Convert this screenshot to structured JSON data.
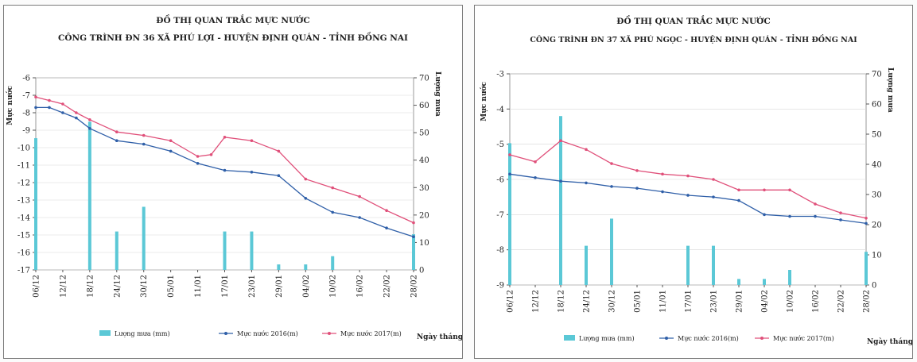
{
  "legend_labels": {
    "rain": "Lượng mưa (mm)",
    "level2016": "Mực nước 2016(m)",
    "level2017": "Mực nước 2017(m)"
  },
  "colors": {
    "rain": "#5bc8d6",
    "level2016": "#2f5fa8",
    "level2017": "#e0507a",
    "border": "#7a7a7a",
    "grid": "#d8d8d8"
  },
  "chart_data": [
    {
      "type": "bar",
      "title": "ĐỒ THỊ QUAN TRẮC MỰC NƯỚC",
      "subtitle": "CÔNG TRÌNH ĐN 36 XÃ PHÚ LỢI - HUYỆN ĐỊNH QUÁN - TỈNH ĐỒNG NAI",
      "ylabel_left": "Mực nước",
      "ylabel_right": "Lượng mưa",
      "xlabel": "Ngày tháng",
      "ylim_left": [
        -17,
        -6
      ],
      "ylim_right": [
        0,
        70
      ],
      "left_ticks": [
        -6,
        -7,
        -8,
        -9,
        -10,
        -11,
        -12,
        -13,
        -14,
        -15,
        -16,
        -17
      ],
      "right_ticks": [
        70,
        60,
        50,
        40,
        30,
        20,
        10,
        0
      ],
      "categories": [
        "06/12",
        "12/12",
        "18/12",
        "24/12",
        "30/12",
        "05/01",
        "11/01",
        "17/01",
        "23/01",
        "29/01",
        "04/02",
        "10/02",
        "16/02",
        "22/02",
        "28/02"
      ],
      "rain": {
        "x": [
          0,
          2,
          3,
          4,
          7,
          8,
          9,
          10,
          11,
          14
        ],
        "values": [
          48,
          54,
          14,
          23,
          14,
          14,
          2,
          2,
          5,
          13
        ]
      },
      "level2016": {
        "x": [
          0,
          0.5,
          1,
          1.5,
          2,
          3,
          4,
          5,
          6,
          7,
          8,
          9,
          10,
          11,
          12,
          13,
          14
        ],
        "values": [
          -7.7,
          -7.7,
          -8.0,
          -8.3,
          -8.9,
          -9.6,
          -9.8,
          -10.2,
          -10.9,
          -11.3,
          -11.4,
          -11.6,
          -12.9,
          -13.7,
          -14.0,
          -14.6,
          -15.1
        ]
      },
      "level2017": {
        "x": [
          0,
          0.5,
          1,
          1.5,
          2,
          3,
          4,
          5,
          6,
          6.5,
          7,
          8,
          9,
          10,
          11,
          12,
          13,
          14
        ],
        "values": [
          -7.1,
          -7.3,
          -7.5,
          -8.0,
          -8.4,
          -9.1,
          -9.3,
          -9.6,
          -10.5,
          -10.4,
          -9.4,
          -9.6,
          -10.2,
          -11.8,
          -12.3,
          -12.8,
          -13.6,
          -14.3
        ]
      }
    },
    {
      "type": "bar",
      "title": "ĐỒ THỊ QUAN TRẮC MỰC NƯỚC",
      "subtitle": "CÔNG TRÌNH ĐN 37 XÃ PHÚ NGỌC - HUYỆN ĐỊNH QUÁN - TỈNH ĐỒNG NAI",
      "ylabel_left": "Mực nước",
      "ylabel_right": "Lượng mưa",
      "xlabel": "Ngày tháng",
      "ylim_left": [
        -9,
        -3
      ],
      "ylim_right": [
        0,
        70
      ],
      "left_ticks": [
        -3,
        -4,
        -5,
        -6,
        -7,
        -8,
        -9
      ],
      "right_ticks": [
        70,
        60,
        50,
        40,
        30,
        20,
        10,
        0
      ],
      "categories": [
        "06/12",
        "12/12",
        "18/12",
        "24/12",
        "30/12",
        "05/01",
        "11/01",
        "17/01",
        "23/01",
        "29/01",
        "04/02",
        "10/02",
        "16/02",
        "22/02",
        "28/02"
      ],
      "rain": {
        "x": [
          0,
          2,
          3,
          4,
          7,
          8,
          9,
          10,
          11,
          14
        ],
        "values": [
          47,
          56,
          13,
          22,
          13,
          13,
          2,
          2,
          5,
          11
        ]
      },
      "level2016": {
        "x": [
          0,
          1,
          2,
          3,
          4,
          5,
          6,
          7,
          8,
          9,
          10,
          11,
          12,
          13,
          14
        ],
        "values": [
          -5.85,
          -5.95,
          -6.05,
          -6.1,
          -6.2,
          -6.25,
          -6.35,
          -6.45,
          -6.5,
          -6.6,
          -7.0,
          -7.05,
          -7.05,
          -7.15,
          -7.25
        ]
      },
      "level2017": {
        "x": [
          0,
          1,
          2,
          3,
          4,
          5,
          6,
          7,
          8,
          9,
          10,
          11,
          12,
          13,
          14
        ],
        "values": [
          -5.3,
          -5.5,
          -4.9,
          -5.15,
          -5.55,
          -5.75,
          -5.85,
          -5.9,
          -6.0,
          -6.3,
          -6.3,
          -6.3,
          -6.7,
          -6.95,
          -7.1
        ]
      }
    }
  ]
}
